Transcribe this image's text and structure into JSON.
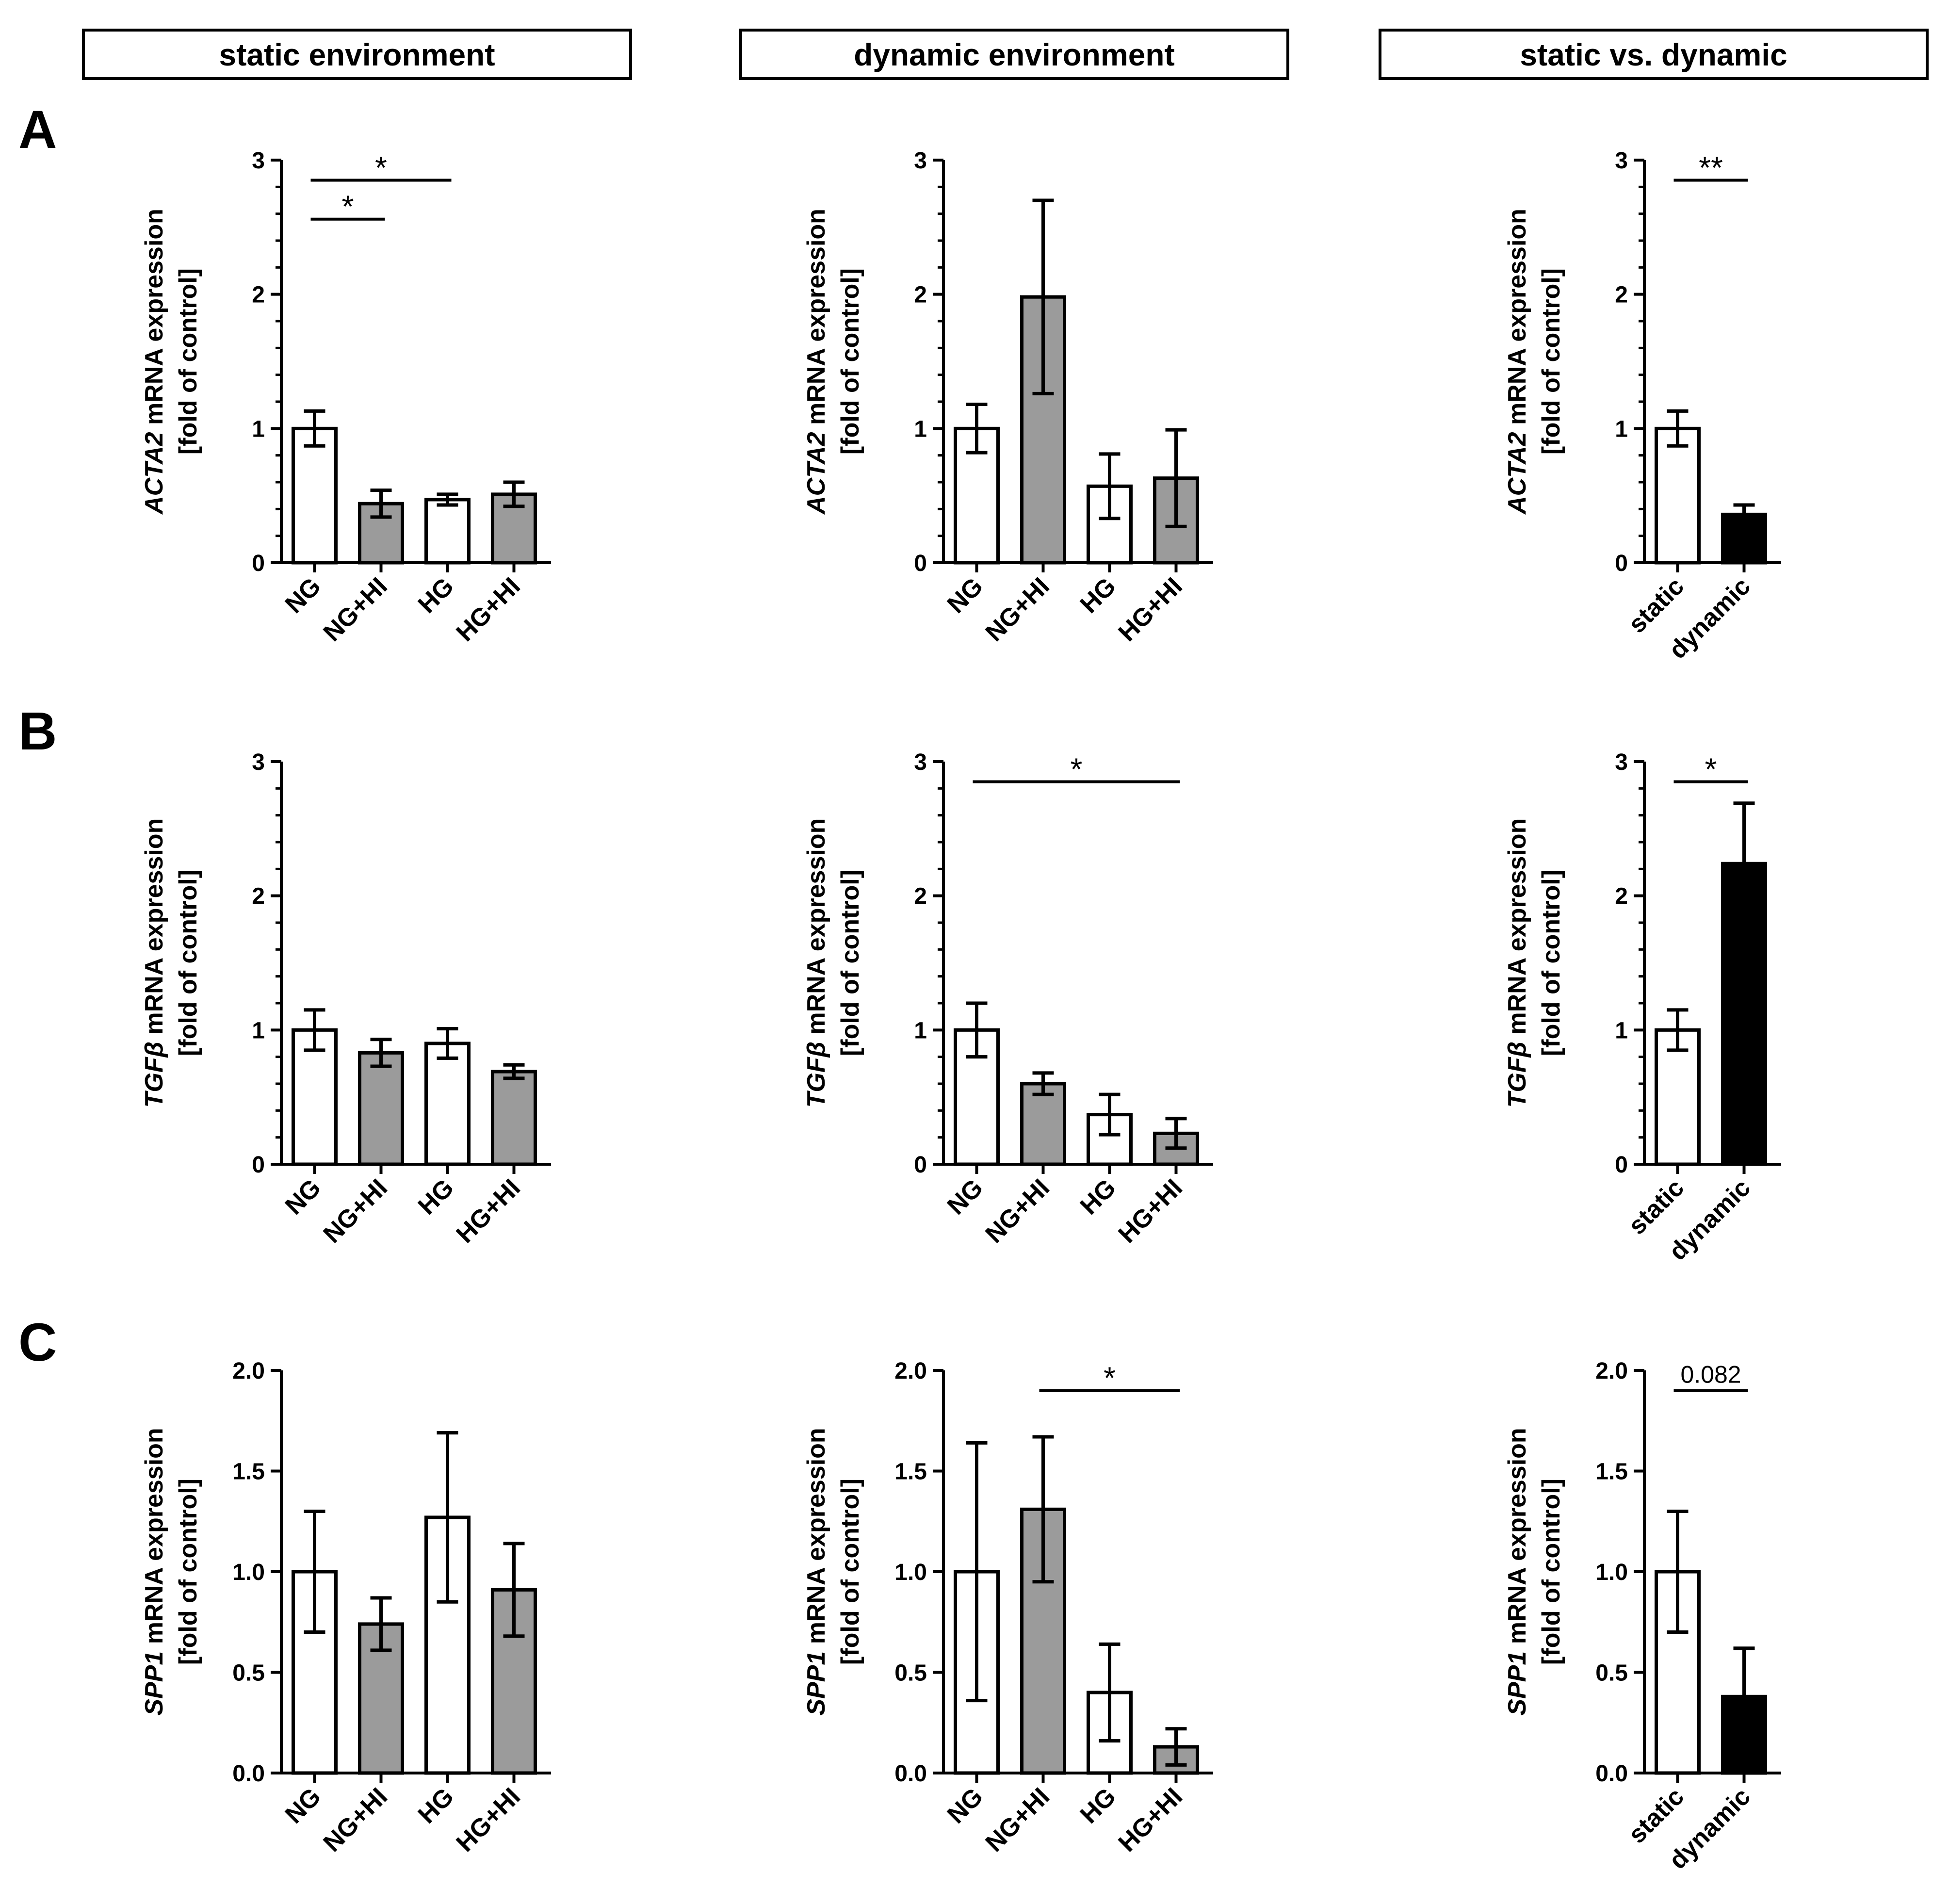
{
  "headers": [
    "static environment",
    "dynamic environment",
    "static vs. dynamic"
  ],
  "row_labels": [
    "A",
    "B",
    "C"
  ],
  "colors": {
    "control": "#ffffff",
    "hi": "#9b9b9b",
    "dynamic": "#000000",
    "stroke": "#000000"
  },
  "chart_data": [
    {
      "id": "A-static",
      "type": "bar",
      "row": "A",
      "panel": "static environment",
      "gene": "ACTA2",
      "ylabel_rest": " mRNA expression",
      "ylabel_line2": "[fold of control]",
      "ylim": [
        0,
        3
      ],
      "yticks": [
        0,
        1,
        2,
        3
      ],
      "ytick_labels": [
        "0",
        "1",
        "2",
        "3"
      ],
      "minor_per_major": 4,
      "categories": [
        "NG",
        "NG+HI",
        "HG",
        "HG+HI"
      ],
      "values": [
        1.0,
        0.44,
        0.47,
        0.51
      ],
      "errors": [
        0.13,
        0.1,
        0.04,
        0.09
      ],
      "fills": [
        "control",
        "hi",
        "control",
        "hi"
      ],
      "significance": [
        {
          "from": 0,
          "to": 1,
          "y": 2.56,
          "label": "*"
        },
        {
          "from": 0,
          "to": 2,
          "y": 2.85,
          "label": "*"
        }
      ]
    },
    {
      "id": "A-dynamic",
      "type": "bar",
      "row": "A",
      "panel": "dynamic environment",
      "gene": "ACTA2",
      "ylabel_rest": " mRNA expression",
      "ylabel_line2": "[fold of control]",
      "ylim": [
        0,
        3
      ],
      "yticks": [
        0,
        1,
        2,
        3
      ],
      "ytick_labels": [
        "0",
        "1",
        "2",
        "3"
      ],
      "minor_per_major": 4,
      "categories": [
        "NG",
        "NG+HI",
        "HG",
        "HG+HI"
      ],
      "values": [
        1.0,
        1.98,
        0.57,
        0.63
      ],
      "errors": [
        0.18,
        0.72,
        0.24,
        0.36
      ],
      "fills": [
        "control",
        "hi",
        "control",
        "hi"
      ],
      "significance": []
    },
    {
      "id": "A-compare",
      "type": "bar",
      "row": "A",
      "panel": "static vs. dynamic",
      "gene": "ACTA2",
      "ylabel_rest": " mRNA expression",
      "ylabel_line2": "[fold of control]",
      "ylim": [
        0,
        3
      ],
      "yticks": [
        0,
        1,
        2,
        3
      ],
      "ytick_labels": [
        "0",
        "1",
        "2",
        "3"
      ],
      "minor_per_major": 4,
      "categories": [
        "static",
        "dynamic"
      ],
      "values": [
        1.0,
        0.36
      ],
      "errors": [
        0.13,
        0.07
      ],
      "fills": [
        "control",
        "dynamic"
      ],
      "significance": [
        {
          "from": 0,
          "to": 1,
          "y": 2.85,
          "label": "**"
        }
      ]
    },
    {
      "id": "B-static",
      "type": "bar",
      "row": "B",
      "panel": "static environment",
      "gene": "TGFβ",
      "ylabel_rest": " mRNA expression",
      "ylabel_line2": "[fold of control]",
      "ylim": [
        0,
        3
      ],
      "yticks": [
        0,
        1,
        2,
        3
      ],
      "ytick_labels": [
        "0",
        "1",
        "2",
        "3"
      ],
      "minor_per_major": 4,
      "categories": [
        "NG",
        "NG+HI",
        "HG",
        "HG+HI"
      ],
      "values": [
        1.0,
        0.83,
        0.9,
        0.69
      ],
      "errors": [
        0.15,
        0.1,
        0.11,
        0.05
      ],
      "fills": [
        "control",
        "hi",
        "control",
        "hi"
      ],
      "significance": []
    },
    {
      "id": "B-dynamic",
      "type": "bar",
      "row": "B",
      "panel": "dynamic environment",
      "gene": "TGFβ",
      "ylabel_rest": " mRNA expression",
      "ylabel_line2": "[fold of control]",
      "ylim": [
        0,
        3
      ],
      "yticks": [
        0,
        1,
        2,
        3
      ],
      "ytick_labels": [
        "0",
        "1",
        "2",
        "3"
      ],
      "minor_per_major": 4,
      "categories": [
        "NG",
        "NG+HI",
        "HG",
        "HG+HI"
      ],
      "values": [
        1.0,
        0.6,
        0.37,
        0.23
      ],
      "errors": [
        0.2,
        0.08,
        0.15,
        0.11
      ],
      "fills": [
        "control",
        "hi",
        "control",
        "hi"
      ],
      "significance": [
        {
          "from": 0,
          "to": 3,
          "y": 2.85,
          "label": "*"
        }
      ]
    },
    {
      "id": "B-compare",
      "type": "bar",
      "row": "B",
      "panel": "static vs. dynamic",
      "gene": "TGFβ",
      "ylabel_rest": " mRNA expression",
      "ylabel_line2": "[fold of control]",
      "ylim": [
        0,
        3
      ],
      "yticks": [
        0,
        1,
        2,
        3
      ],
      "ytick_labels": [
        "0",
        "1",
        "2",
        "3"
      ],
      "minor_per_major": 4,
      "categories": [
        "static",
        "dynamic"
      ],
      "values": [
        1.0,
        2.24
      ],
      "errors": [
        0.15,
        0.45
      ],
      "fills": [
        "control",
        "dynamic"
      ],
      "significance": [
        {
          "from": 0,
          "to": 1,
          "y": 2.85,
          "label": "*"
        }
      ]
    },
    {
      "id": "C-static",
      "type": "bar",
      "row": "C",
      "panel": "static environment",
      "gene": "SPP1",
      "ylabel_rest": " mRNA expression",
      "ylabel_line2": "[fold of control]",
      "ylim": [
        0,
        2
      ],
      "yticks": [
        0,
        0.5,
        1,
        1.5,
        2
      ],
      "ytick_labels": [
        "0.0",
        "0.5",
        "1.0",
        "1.5",
        "2.0"
      ],
      "minor_per_major": 0,
      "categories": [
        "NG",
        "NG+HI",
        "HG",
        "HG+HI"
      ],
      "values": [
        1.0,
        0.74,
        1.27,
        0.91
      ],
      "errors": [
        0.3,
        0.13,
        0.42,
        0.23
      ],
      "fills": [
        "control",
        "hi",
        "control",
        "hi"
      ],
      "significance": []
    },
    {
      "id": "C-dynamic",
      "type": "bar",
      "row": "C",
      "panel": "dynamic environment",
      "gene": "SPP1",
      "ylabel_rest": " mRNA expression",
      "ylabel_line2": "[fold of control]",
      "ylim": [
        0,
        2
      ],
      "yticks": [
        0,
        0.5,
        1,
        1.5,
        2
      ],
      "ytick_labels": [
        "0.0",
        "0.5",
        "1.0",
        "1.5",
        "2.0"
      ],
      "minor_per_major": 0,
      "categories": [
        "NG",
        "NG+HI",
        "HG",
        "HG+HI"
      ],
      "values": [
        1.0,
        1.31,
        0.4,
        0.13
      ],
      "errors": [
        0.64,
        0.36,
        0.24,
        0.09
      ],
      "fills": [
        "control",
        "hi",
        "control",
        "hi"
      ],
      "significance": [
        {
          "from": 1,
          "to": 3,
          "y": 1.9,
          "label": "*"
        }
      ]
    },
    {
      "id": "C-compare",
      "type": "bar",
      "row": "C",
      "panel": "static vs. dynamic",
      "gene": "SPP1",
      "ylabel_rest": " mRNA expression",
      "ylabel_line2": "[fold of control]",
      "ylim": [
        0,
        2
      ],
      "yticks": [
        0,
        0.5,
        1,
        1.5,
        2
      ],
      "ytick_labels": [
        "0.0",
        "0.5",
        "1.0",
        "1.5",
        "2.0"
      ],
      "minor_per_major": 0,
      "categories": [
        "static",
        "dynamic"
      ],
      "values": [
        1.0,
        0.38
      ],
      "errors": [
        0.3,
        0.24
      ],
      "fills": [
        "control",
        "dynamic"
      ],
      "significance": [
        {
          "from": 0,
          "to": 1,
          "y": 1.9,
          "label": "0.082"
        }
      ]
    }
  ]
}
